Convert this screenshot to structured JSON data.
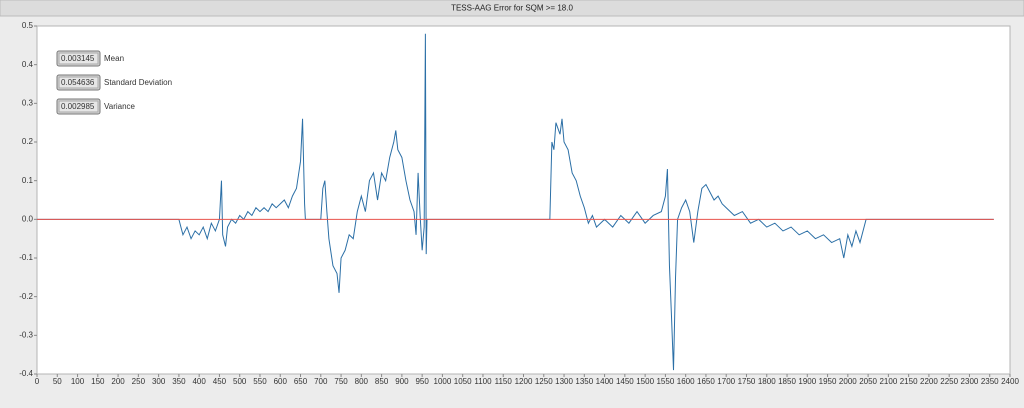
{
  "chart_data": {
    "type": "line",
    "title": "TESS-AAG Error for SQM >= 18.0",
    "xlim": [
      0,
      2400
    ],
    "xticks": [
      0,
      50,
      100,
      150,
      200,
      250,
      300,
      350,
      400,
      450,
      500,
      550,
      600,
      650,
      700,
      750,
      800,
      850,
      900,
      950,
      1000,
      1050,
      1100,
      1150,
      1200,
      1250,
      1300,
      1350,
      1400,
      1450,
      1500,
      1550,
      1600,
      1650,
      1700,
      1750,
      1800,
      1850,
      1900,
      1950,
      2000,
      2050,
      2100,
      2150,
      2200,
      2250,
      2300,
      2350,
      2400
    ],
    "ylim": [
      -0.4,
      0.5
    ],
    "yticks": [
      -0.4,
      -0.3,
      -0.2,
      -0.1,
      {
        "value": 0,
        "label": "0.0"
      },
      0.1,
      0.2,
      0.3,
      0.4,
      0.5
    ],
    "grid": false,
    "series": [
      {
        "color": "#2b6fa6",
        "x": [
          0,
          350,
          355,
          360,
          370,
          380,
          390,
          400,
          410,
          420,
          430,
          440,
          450,
          455,
          458,
          465,
          470,
          480,
          490,
          500,
          510,
          520,
          530,
          540,
          550,
          560,
          570,
          580,
          590,
          600,
          610,
          620,
          630,
          640,
          650,
          655,
          660,
          662,
          700,
          705,
          710,
          715,
          720,
          730,
          740,
          745,
          750,
          760,
          770,
          780,
          790,
          800,
          810,
          820,
          830,
          840,
          850,
          860,
          870,
          880,
          885,
          890,
          900,
          910,
          920,
          930,
          935,
          940,
          945,
          950,
          955,
          958,
          960,
          962,
          1265,
          1270,
          1275,
          1280,
          1290,
          1295,
          1300,
          1310,
          1320,
          1330,
          1340,
          1350,
          1360,
          1370,
          1380,
          1400,
          1420,
          1440,
          1460,
          1480,
          1500,
          1520,
          1540,
          1550,
          1555,
          1560,
          1565,
          1570,
          1575,
          1580,
          1590,
          1600,
          1610,
          1620,
          1630,
          1640,
          1650,
          1660,
          1670,
          1680,
          1690,
          1700,
          1720,
          1740,
          1760,
          1780,
          1800,
          1820,
          1840,
          1860,
          1880,
          1900,
          1920,
          1940,
          1960,
          1980,
          1990,
          2000,
          2010,
          2020,
          2030,
          2040,
          2045,
          2360
        ],
        "values": [
          0,
          0,
          -0.02,
          -0.04,
          -0.02,
          -0.05,
          -0.03,
          -0.04,
          -0.02,
          -0.05,
          -0.01,
          -0.03,
          0,
          0.1,
          -0.04,
          -0.07,
          -0.02,
          0,
          -0.01,
          0.01,
          0,
          0.02,
          0.01,
          0.03,
          0.02,
          0.03,
          0.02,
          0.04,
          0.03,
          0.04,
          0.05,
          0.03,
          0.06,
          0.08,
          0.15,
          0.26,
          0.04,
          0,
          0,
          0.08,
          0.1,
          0.02,
          -0.05,
          -0.12,
          -0.14,
          -0.19,
          -0.1,
          -0.08,
          -0.04,
          -0.05,
          0.02,
          0.06,
          0.02,
          0.1,
          0.12,
          0.05,
          0.12,
          0.1,
          0.16,
          0.2,
          0.23,
          0.18,
          0.16,
          0.1,
          0.05,
          0.02,
          -0.04,
          0.12,
          0.01,
          -0.08,
          -0.02,
          0.48,
          -0.09,
          0,
          0,
          0.2,
          0.18,
          0.25,
          0.22,
          0.26,
          0.2,
          0.18,
          0.12,
          0.1,
          0.06,
          0.03,
          -0.01,
          0.01,
          -0.02,
          0,
          -0.02,
          0.01,
          -0.01,
          0.02,
          -0.01,
          0.01,
          0.02,
          0.06,
          0.13,
          -0.12,
          -0.25,
          -0.39,
          -0.15,
          0,
          0.03,
          0.05,
          0.02,
          -0.06,
          0.02,
          0.08,
          0.09,
          0.07,
          0.05,
          0.06,
          0.04,
          0.03,
          0.01,
          0.02,
          -0.01,
          0,
          -0.02,
          -0.01,
          -0.03,
          -0.02,
          -0.04,
          -0.03,
          -0.05,
          -0.04,
          -0.06,
          -0.05,
          -0.1,
          -0.04,
          -0.07,
          -0.03,
          -0.06,
          -0.02,
          0,
          0
        ]
      },
      {
        "color": "#e8524b",
        "x": [
          0,
          2360
        ],
        "values": [
          0,
          0
        ]
      }
    ],
    "indicators": [
      {
        "value": 0.003145,
        "label": "Mean"
      },
      {
        "value": 0.054636,
        "label": "Standard Deviation"
      },
      {
        "value": 0.002985,
        "label": "Variance"
      }
    ]
  }
}
